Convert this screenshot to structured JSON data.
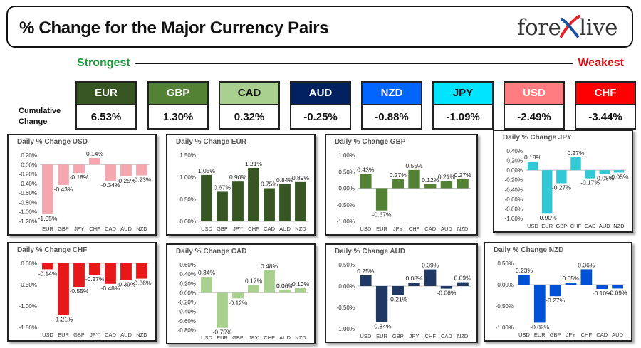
{
  "header": {
    "title": "% Change for the Major Currency Pairs",
    "logo_left": "fore",
    "logo_right": "live",
    "logo_icon": "x-swoosh-icon"
  },
  "labels": {
    "strongest": "Strongest",
    "weakest": "Weakest",
    "cumulative_line1": "Cumulative",
    "cumulative_line2": "Change"
  },
  "colors": {
    "strongest_text": "#1e9a3b",
    "weakest_text": "#e01010",
    "usd_bar": "#f4a7ae",
    "eur_bar": "#375623",
    "gbp_bar": "#548235",
    "jpy_bar": "#32c8d6",
    "chf_bar": "#e81818",
    "cad_bar": "#a9d08e",
    "aud_bar": "#1f3864",
    "nzd_bar": "#0050d8"
  },
  "currencies": [
    {
      "code": "EUR",
      "value": "6.53%",
      "bg": "#375623",
      "fg": "#ffffff"
    },
    {
      "code": "GBP",
      "value": "1.30%",
      "bg": "#548235",
      "fg": "#ffffff"
    },
    {
      "code": "CAD",
      "value": "0.32%",
      "bg": "#a9d08e",
      "fg": "#111111"
    },
    {
      "code": "AUD",
      "value": "-0.25%",
      "bg": "#002060",
      "fg": "#ffffff"
    },
    {
      "code": "NZD",
      "value": "-0.88%",
      "bg": "#0066ff",
      "fg": "#ffffff"
    },
    {
      "code": "JPY",
      "value": "-1.09%",
      "bg": "#00e5ff",
      "fg": "#111111"
    },
    {
      "code": "USD",
      "value": "-2.49%",
      "bg": "#ff7c80",
      "fg": "#ffffff"
    },
    {
      "code": "CHF",
      "value": "-3.44%",
      "bg": "#ff0000",
      "fg": "#ffffff"
    }
  ],
  "chart_data": [
    {
      "type": "bar",
      "title": "Daily % Change USD",
      "categories": [
        "EUR",
        "GBP",
        "JPY",
        "CHF",
        "CAD",
        "AUD",
        "NZD"
      ],
      "values": [
        -1.05,
        -0.43,
        -0.18,
        0.14,
        -0.34,
        -0.25,
        -0.23
      ],
      "labels": [
        "-1.05%",
        "-0.43%",
        "-0.18%",
        "0.14%",
        "-0.34%",
        "-0.25%",
        "-0.23%"
      ],
      "ylim": [
        -1.2,
        0.2
      ],
      "ticks": [
        0.2,
        0,
        -0.2,
        -0.4,
        -0.6,
        -0.8,
        -1,
        -1.2
      ],
      "tick_labels": [
        "0.20%",
        "0.00%",
        "-0.20%",
        "-0.40%",
        "-0.60%",
        "-0.80%",
        "-1.00%",
        "-1.20%"
      ],
      "color": "#f4a7ae"
    },
    {
      "type": "bar",
      "title": "Daily % Change EUR",
      "categories": [
        "USD",
        "GBP",
        "JPY",
        "CHF",
        "CAD",
        "AUD",
        "NZD"
      ],
      "values": [
        1.05,
        0.67,
        0.9,
        1.21,
        0.75,
        0.84,
        0.89
      ],
      "labels": [
        "1.05%",
        "0.67%",
        "0.90%",
        "1.21%",
        "0.75%",
        "0.84%",
        "0.89%"
      ],
      "ylim": [
        0,
        1.5
      ],
      "ticks": [
        1.5,
        1,
        0.5,
        0
      ],
      "tick_labels": [
        "1.50%",
        "1.00%",
        "0.50%",
        "0.00%"
      ],
      "color": "#375623"
    },
    {
      "type": "bar",
      "title": "Daily % Change GBP",
      "categories": [
        "USD",
        "EUR",
        "JPY",
        "CHF",
        "CAD",
        "AUD",
        "NZD"
      ],
      "values": [
        0.43,
        -0.67,
        0.27,
        0.55,
        0.12,
        0.21,
        0.27
      ],
      "labels": [
        "0.43%",
        "-0.67%",
        "0.27%",
        "0.55%",
        "0.12%",
        "0.21%",
        "0.27%"
      ],
      "ylim": [
        -1,
        1
      ],
      "ticks": [
        1,
        0.5,
        0,
        -0.5,
        -1
      ],
      "tick_labels": [
        "1.00%",
        "0.50%",
        "0.00%",
        "-0.50%",
        "-1.00%"
      ],
      "color": "#548235"
    },
    {
      "type": "bar",
      "title": "Daily % Change JPY",
      "categories": [
        "USD",
        "EUR",
        "GBP",
        "CHF",
        "CAD",
        "AUD",
        "NZD"
      ],
      "values": [
        0.18,
        -0.9,
        -0.27,
        0.27,
        -0.17,
        -0.08,
        -0.05
      ],
      "labels": [
        "0.18%",
        "-0.90%",
        "-0.27%",
        "0.27%",
        "-0.17%",
        "-0.08%",
        "-0.05%"
      ],
      "ylim": [
        -1,
        0.4
      ],
      "ticks": [
        0.4,
        0.2,
        0,
        -0.2,
        -0.4,
        -0.6,
        -0.8,
        -1
      ],
      "tick_labels": [
        "0.40%",
        "0.20%",
        "0.00%",
        "-0.20%",
        "-0.40%",
        "-0.60%",
        "-0.80%",
        "-1.00%"
      ],
      "color": "#32c8d6"
    },
    {
      "type": "bar",
      "title": "Daily % Change CHF",
      "categories": [
        "USD",
        "EUR",
        "GBP",
        "JPY",
        "CAD",
        "AUD",
        "NZD"
      ],
      "values": [
        -0.14,
        -1.21,
        -0.55,
        -0.27,
        -0.48,
        -0.39,
        -0.36
      ],
      "labels": [
        "-0.14%",
        "-1.21%",
        "-0.55%",
        "-0.27%",
        "-0.48%",
        "-0.39%",
        "-0.36%"
      ],
      "ylim": [
        -1.5,
        0
      ],
      "ticks": [
        0,
        -0.5,
        -1,
        -1.5
      ],
      "tick_labels": [
        "0.00%",
        "-0.50%",
        "-1.00%",
        "-1.50%"
      ],
      "color": "#e81818"
    },
    {
      "type": "bar",
      "title": "Daily % Change CAD",
      "categories": [
        "USD",
        "EUR",
        "GBP",
        "JPY",
        "CHF",
        "AUD",
        "NZD"
      ],
      "values": [
        0.34,
        -0.75,
        -0.12,
        0.17,
        0.48,
        0.06,
        0.1
      ],
      "labels": [
        "0.34%",
        "-0.75%",
        "-0.12%",
        "0.17%",
        "0.48%",
        "0.06%",
        "0.10%"
      ],
      "ylim": [
        -0.8,
        0.6
      ],
      "ticks": [
        0.6,
        0.4,
        0.2,
        0,
        -0.2,
        -0.4,
        -0.6,
        -0.8
      ],
      "tick_labels": [
        "0.60%",
        "0.40%",
        "0.20%",
        "0.00%",
        "-0.20%",
        "-0.40%",
        "-0.60%",
        "-0.80%"
      ],
      "color": "#a9d08e"
    },
    {
      "type": "bar",
      "title": "Daily % Change AUD",
      "categories": [
        "USD",
        "EUR",
        "GBP",
        "JPY",
        "CHF",
        "CAD",
        "NZD"
      ],
      "values": [
        0.25,
        -0.84,
        -0.21,
        0.08,
        0.39,
        -0.06,
        0.09
      ],
      "labels": [
        "0.25%",
        "-0.84%",
        "-0.21%",
        "0.08%",
        "0.39%",
        "-0.06%",
        "0.09%"
      ],
      "ylim": [
        -1,
        0.5
      ],
      "ticks": [
        0.5,
        0,
        -0.5,
        -1
      ],
      "tick_labels": [
        "0.50%",
        "0.00%",
        "-0.50%",
        "-1.00%"
      ],
      "color": "#1f3864"
    },
    {
      "type": "bar",
      "title": "Daily % Change NZD",
      "categories": [
        "USD",
        "EUR",
        "GBP",
        "JPY",
        "CHF",
        "CAD",
        "AUD"
      ],
      "values": [
        0.23,
        -0.89,
        -0.27,
        0.05,
        0.36,
        -0.1,
        -0.09
      ],
      "labels": [
        "0.23%",
        "-0.89%",
        "-0.27%",
        "0.05%",
        "0.36%",
        "-0.10%",
        "-0.09%"
      ],
      "ylim": [
        -1,
        0.5
      ],
      "ticks": [
        0.5,
        0,
        -0.5,
        -1
      ],
      "tick_labels": [
        "0.50%",
        "0.00%",
        "-0.50%",
        "-1.00%"
      ],
      "color": "#0050d8"
    }
  ]
}
